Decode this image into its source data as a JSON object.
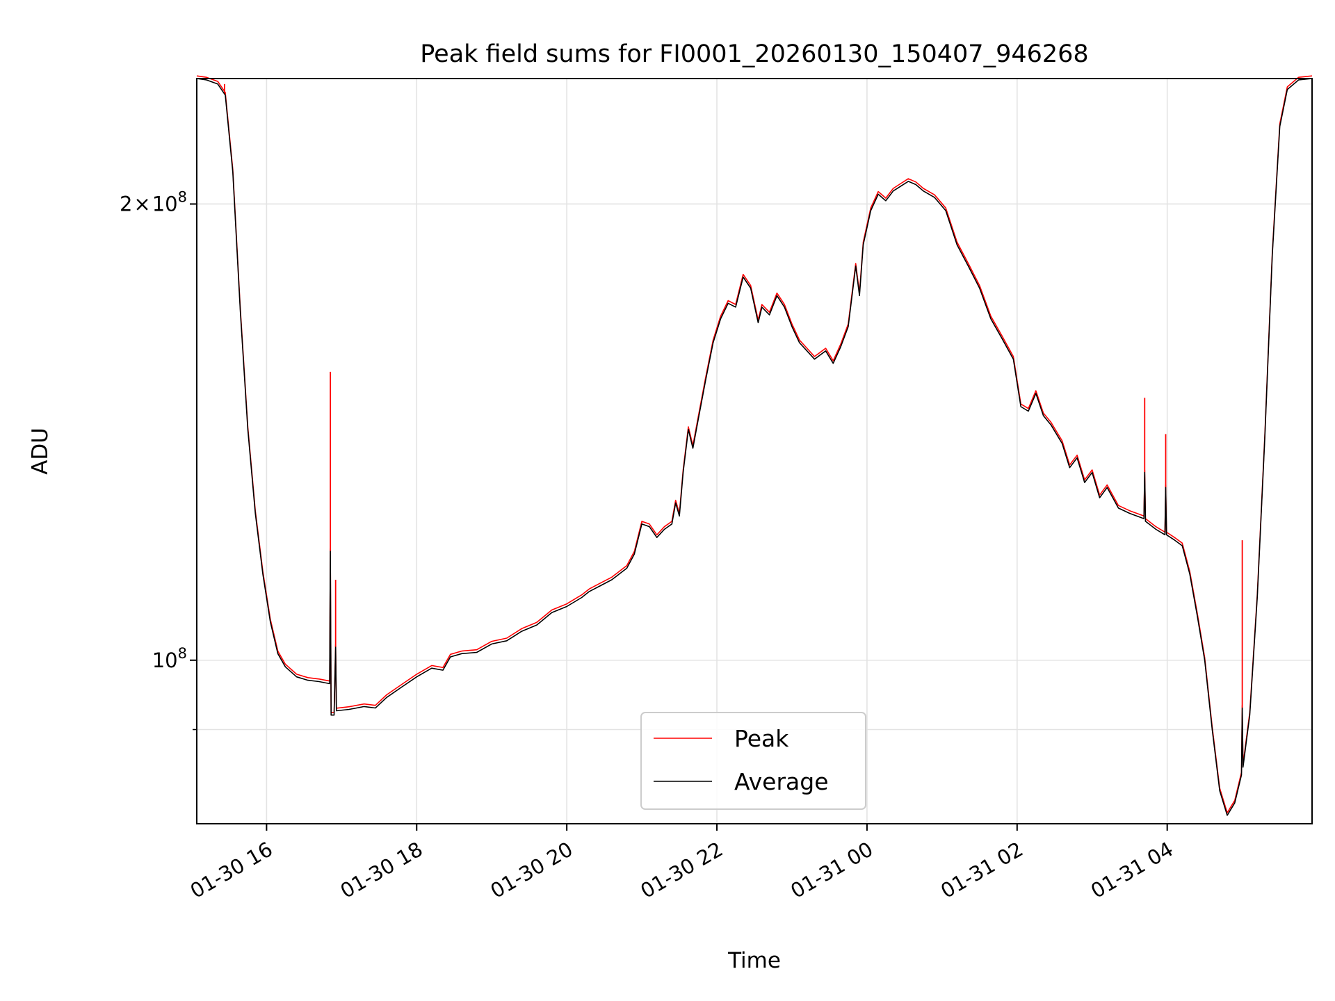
{
  "chart_data": {
    "type": "line",
    "title": "Peak field sums for FI0001_20260130_150407_946268",
    "xlabel": "Time",
    "ylabel": "ADU",
    "yscale": "log",
    "ylim": [
      78000000,
      242000000
    ],
    "xlim_hours": [
      15.07,
      29.93
    ],
    "grid": true,
    "legend_position": "lower-center",
    "x_ticks": [
      {
        "hour": 16,
        "label": "01-30 16"
      },
      {
        "hour": 18,
        "label": "01-30 18"
      },
      {
        "hour": 20,
        "label": "01-30 20"
      },
      {
        "hour": 22,
        "label": "01-30 22"
      },
      {
        "hour": 24,
        "label": "01-31 00"
      },
      {
        "hour": 26,
        "label": "01-31 02"
      },
      {
        "hour": 28,
        "label": "01-31 04"
      }
    ],
    "y_ticks": [
      {
        "value": 100000000,
        "base": "10",
        "exp": "8",
        "label": "10^8"
      },
      {
        "value": 200000000,
        "mantissa": "2",
        "base": "10",
        "exp": "8",
        "label": "2×10^8"
      }
    ],
    "y_minor_ticks": [
      90000000
    ],
    "series": [
      {
        "name": "Peak",
        "color": "#ff0000",
        "spikes": [
          {
            "x": 16.85,
            "y": 155000000
          },
          {
            "x": 16.92,
            "y": 113000000
          },
          {
            "x": 27.7,
            "y": 149000000
          },
          {
            "x": 27.98,
            "y": 141000000
          },
          {
            "x": 29.0,
            "y": 120000000
          },
          {
            "x": 15.44,
            "y": 240000000
          }
        ]
      },
      {
        "name": "Average",
        "color": "#000000",
        "points": [
          [
            15.07,
            242000000
          ],
          [
            15.2,
            241500000
          ],
          [
            15.35,
            240000000
          ],
          [
            15.45,
            236000000
          ],
          [
            15.55,
            210000000
          ],
          [
            15.65,
            170000000
          ],
          [
            15.75,
            142000000
          ],
          [
            15.85,
            125000000
          ],
          [
            15.95,
            114000000
          ],
          [
            16.05,
            106000000
          ],
          [
            16.15,
            101000000
          ],
          [
            16.25,
            99000000
          ],
          [
            16.4,
            97500000
          ],
          [
            16.55,
            97000000
          ],
          [
            16.7,
            96800000
          ],
          [
            16.84,
            96500000
          ],
          [
            16.85,
            118000000
          ],
          [
            16.86,
            92000000
          ],
          [
            16.9,
            92000000
          ],
          [
            16.92,
            102000000
          ],
          [
            16.93,
            92600000
          ],
          [
            17.1,
            92800000
          ],
          [
            17.3,
            93200000
          ],
          [
            17.45,
            93000000
          ],
          [
            17.6,
            94500000
          ],
          [
            17.8,
            96000000
          ],
          [
            18.0,
            97500000
          ],
          [
            18.2,
            98800000
          ],
          [
            18.35,
            98500000
          ],
          [
            18.45,
            100500000
          ],
          [
            18.6,
            101000000
          ],
          [
            18.8,
            101200000
          ],
          [
            19.0,
            102500000
          ],
          [
            19.2,
            103000000
          ],
          [
            19.4,
            104500000
          ],
          [
            19.6,
            105500000
          ],
          [
            19.8,
            107500000
          ],
          [
            20.0,
            108500000
          ],
          [
            20.2,
            110000000
          ],
          [
            20.3,
            111000000
          ],
          [
            20.45,
            112000000
          ],
          [
            20.6,
            113000000
          ],
          [
            20.8,
            115000000
          ],
          [
            20.9,
            117500000
          ],
          [
            21.0,
            123000000
          ],
          [
            21.1,
            122500000
          ],
          [
            21.2,
            120500000
          ],
          [
            21.3,
            122000000
          ],
          [
            21.4,
            123000000
          ],
          [
            21.45,
            127000000
          ],
          [
            21.5,
            124500000
          ],
          [
            21.55,
            133000000
          ],
          [
            21.62,
            142000000
          ],
          [
            21.68,
            138000000
          ],
          [
            21.75,
            144000000
          ],
          [
            21.85,
            153000000
          ],
          [
            21.95,
            162000000
          ],
          [
            22.05,
            168000000
          ],
          [
            22.15,
            172000000
          ],
          [
            22.25,
            171000000
          ],
          [
            22.35,
            179000000
          ],
          [
            22.45,
            176000000
          ],
          [
            22.55,
            167000000
          ],
          [
            22.6,
            171000000
          ],
          [
            22.7,
            169000000
          ],
          [
            22.8,
            174000000
          ],
          [
            22.9,
            171000000
          ],
          [
            23.0,
            166000000
          ],
          [
            23.1,
            162000000
          ],
          [
            23.2,
            160000000
          ],
          [
            23.3,
            158000000
          ],
          [
            23.45,
            160000000
          ],
          [
            23.55,
            157000000
          ],
          [
            23.65,
            161000000
          ],
          [
            23.75,
            166000000
          ],
          [
            23.85,
            182000000
          ],
          [
            23.9,
            174000000
          ],
          [
            23.95,
            188000000
          ],
          [
            24.05,
            198000000
          ],
          [
            24.15,
            203000000
          ],
          [
            24.25,
            201000000
          ],
          [
            24.35,
            204000000
          ],
          [
            24.45,
            205500000
          ],
          [
            24.55,
            207000000
          ],
          [
            24.65,
            206000000
          ],
          [
            24.75,
            204000000
          ],
          [
            24.9,
            202000000
          ],
          [
            25.05,
            198000000
          ],
          [
            25.2,
            188000000
          ],
          [
            25.35,
            182000000
          ],
          [
            25.5,
            176000000
          ],
          [
            25.65,
            168000000
          ],
          [
            25.8,
            163000000
          ],
          [
            25.95,
            158000000
          ],
          [
            26.05,
            147000000
          ],
          [
            26.15,
            146000000
          ],
          [
            26.25,
            150000000
          ],
          [
            26.35,
            145000000
          ],
          [
            26.45,
            143000000
          ],
          [
            26.6,
            139000000
          ],
          [
            26.7,
            134000000
          ],
          [
            26.8,
            136000000
          ],
          [
            26.9,
            131000000
          ],
          [
            27.0,
            133000000
          ],
          [
            27.1,
            128000000
          ],
          [
            27.2,
            130000000
          ],
          [
            27.35,
            126000000
          ],
          [
            27.5,
            125000000
          ],
          [
            27.69,
            124000000
          ],
          [
            27.7,
            133000000
          ],
          [
            27.71,
            123500000
          ],
          [
            27.85,
            122000000
          ],
          [
            27.97,
            121000000
          ],
          [
            27.98,
            130000000
          ],
          [
            27.99,
            121000000
          ],
          [
            28.1,
            120000000
          ],
          [
            28.2,
            119000000
          ],
          [
            28.3,
            114000000
          ],
          [
            28.4,
            107000000
          ],
          [
            28.5,
            100000000
          ],
          [
            28.6,
            90000000
          ],
          [
            28.7,
            82000000
          ],
          [
            28.8,
            79000000
          ],
          [
            28.9,
            80500000
          ],
          [
            28.99,
            84000000
          ],
          [
            29.0,
            93000000
          ],
          [
            29.01,
            85000000
          ],
          [
            29.1,
            92000000
          ],
          [
            29.2,
            110000000
          ],
          [
            29.3,
            140000000
          ],
          [
            29.4,
            185000000
          ],
          [
            29.5,
            225000000
          ],
          [
            29.6,
            238000000
          ],
          [
            29.75,
            241500000
          ],
          [
            29.93,
            242000000
          ]
        ]
      }
    ]
  }
}
